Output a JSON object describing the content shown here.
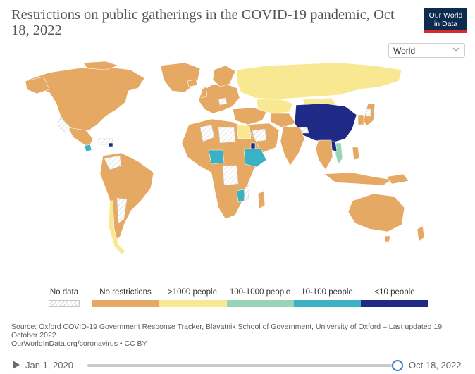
{
  "header": {
    "title": "Restrictions on public gatherings in the COVID-19 pandemic, Oct 18, 2022",
    "logo_line1": "Our World",
    "logo_line2": "in Data"
  },
  "region_selector": {
    "value": "World"
  },
  "legend": {
    "nodata_label": "No data",
    "items": [
      {
        "label": "No restrictions",
        "color": "#e5a964"
      },
      {
        "label": ">1000 people",
        "color": "#f8e891"
      },
      {
        "label": "100-1000 people",
        "color": "#98d4b8"
      },
      {
        "label": "10-100 people",
        "color": "#3ab1c5"
      },
      {
        "label": "<10 people",
        "color": "#1f2a86"
      }
    ]
  },
  "map": {
    "colors": {
      "none": "#e5a964",
      "gt1000": "#f8e891",
      "r100_1000": "#98d4b8",
      "r10_100": "#3ab1c5",
      "lt10": "#1f2a86",
      "nodata_stroke": "#cfcfcf",
      "border": "#ffffff"
    },
    "highlighted": {
      "lt10": [
        "China",
        "Eritrea"
      ],
      "r10_100": [
        "Nigeria",
        "Ethiopia",
        "Malawi",
        "Honduras"
      ],
      "r100_1000": [
        "Vietnam"
      ],
      "gt1000": [
        "Russia",
        "Kazakhstan",
        "Chile",
        "Egypt",
        "Mongolia"
      ]
    }
  },
  "source": {
    "line1": "Source: Oxford COVID-19 Government Response Tracker, Blavatnik School of Government, University of Oxford – Last updated 19 October 2022",
    "line2": "OurWorldInData.org/coronavirus • CC BY"
  },
  "timeline": {
    "start_date": "Jan 1, 2020",
    "end_date": "Oct 18, 2022",
    "progress": 0.98
  }
}
